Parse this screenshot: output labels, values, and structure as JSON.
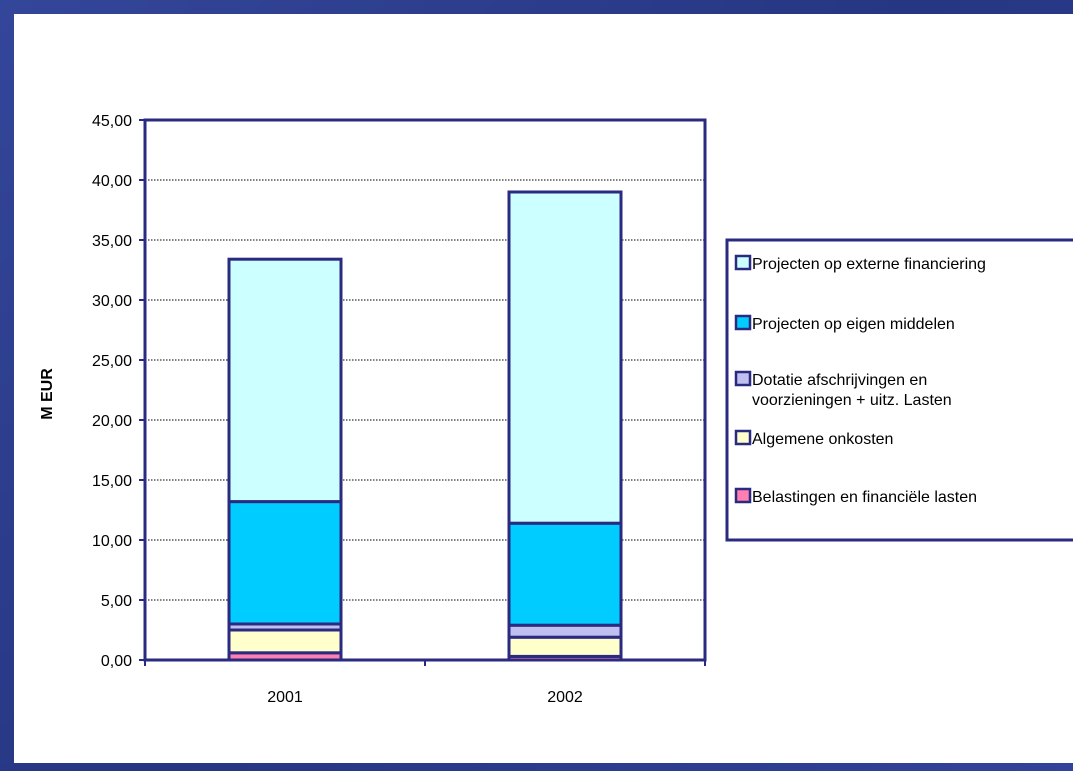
{
  "chart_data": {
    "type": "bar",
    "stacked": true,
    "categories": [
      "2001",
      "2002"
    ],
    "ylabel": "M EUR",
    "ylim": [
      0,
      45
    ],
    "yticks": [
      "0,00",
      "5,00",
      "10,00",
      "15,00",
      "20,00",
      "25,00",
      "30,00",
      "35,00",
      "40,00",
      "45,00"
    ],
    "grid": true,
    "legend_position": "right",
    "series": [
      {
        "name": "Belastingen en financiële lasten",
        "values": [
          0.6,
          0.3
        ],
        "color": "#ff80b0"
      },
      {
        "name": "Algemene onkosten",
        "values": [
          1.9,
          1.6
        ],
        "color": "#ffffcc"
      },
      {
        "name": "Dotatie afschrijvingen en voorzieningen + uitz. Lasten",
        "values": [
          0.5,
          1.0
        ],
        "color": "#c0c0f0"
      },
      {
        "name": "Projecten op eigen middelen",
        "values": [
          10.2,
          8.5
        ],
        "color": "#00ccff"
      },
      {
        "name": "Projecten op externe financiering",
        "values": [
          20.2,
          27.6
        ],
        "color": "#ccffff"
      }
    ],
    "legend_order": [
      4,
      3,
      2,
      1,
      0
    ],
    "legend_lines": [
      [
        "Projecten op externe financiering"
      ],
      [
        "Projecten op eigen middelen"
      ],
      [
        "Dotatie afschrijvingen en",
        "voorzieningen + uitz. Lasten"
      ],
      [
        "Algemene onkosten"
      ],
      [
        "Belastingen en financiële lasten"
      ]
    ]
  }
}
